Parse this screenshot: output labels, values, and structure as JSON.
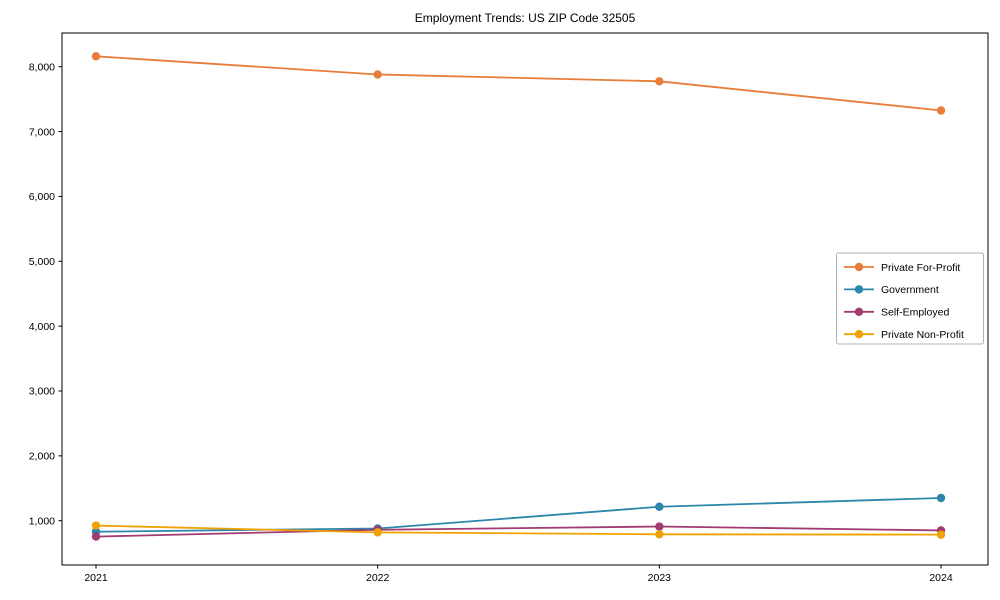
{
  "chart_data": {
    "type": "line",
    "title": "Employment Trends: US ZIP Code 32505",
    "x": [
      "2021",
      "2022",
      "2023",
      "2024"
    ],
    "series": [
      {
        "name": "Private For-Profit",
        "color": "#E87D3A",
        "values": [
          8160,
          7880,
          7775,
          7325
        ]
      },
      {
        "name": "Government",
        "color": "#2E86AB",
        "values": [
          830,
          880,
          1215,
          1350
        ]
      },
      {
        "name": "Self-Employed",
        "color": "#A23B72",
        "values": [
          755,
          860,
          910,
          850
        ]
      },
      {
        "name": "Private Non-Profit",
        "color": "#F0A202",
        "values": [
          925,
          820,
          790,
          785
        ]
      }
    ],
    "yticks": [
      1000,
      2000,
      3000,
      4000,
      5000,
      6000,
      7000,
      8000
    ],
    "ylim": [
      320,
      8520
    ],
    "grid": false,
    "legend_position": "center right",
    "axis_color": "#000000",
    "tick_label_color": "#000000",
    "legend_border_color": "#b3b3b3"
  }
}
